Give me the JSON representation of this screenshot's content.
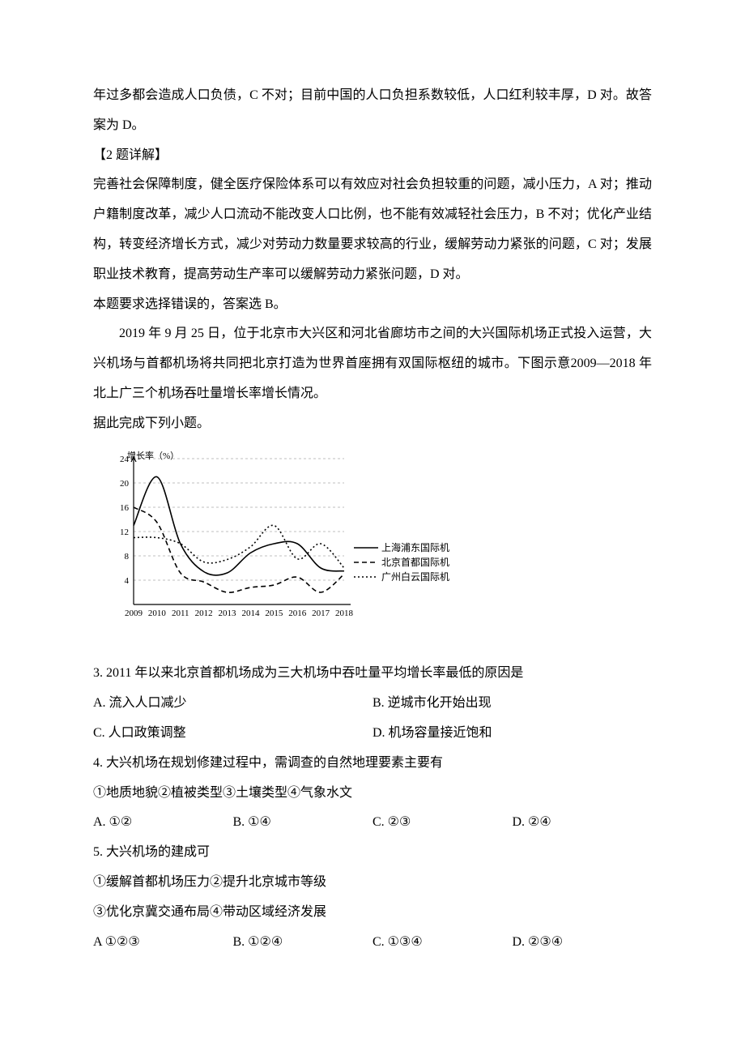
{
  "passage1": {
    "p1": "年过多都会造成人口负债，C 不对；目前中国的人口负担系数较低，人口红利较丰厚，D 对。故答案为 D。",
    "p2": "【2 题详解】",
    "p3": "完善社会保障制度，健全医疗保险体系可以有效应对社会负担较重的问题，减小压力，A 对；推动户籍制度改革，减少人口流动不能改变人口比例，也不能有效减轻社会压力，B 不对；优化产业结构，转变经济增长方式，减少对劳动力数量要求较高的行业，缓解劳动力紧张的问题，C 对；发展职业技术教育，提高劳动生产率可以缓解劳动力紧张问题，D 对。",
    "p4": "本题要求选择错误的，答案选 B。"
  },
  "passage2": {
    "p1": "2019 年 9 月 25 日，位于北京市大兴区和河北省廊坊市之间的大兴国际机场正式投入运营，大兴机场与首都机场将共同把北京打造为世界首座拥有双国际枢纽的城市。下图示意2009—2018 年北上广三个机场吞吐量增长率增长情况。",
    "p2": "据此完成下列小题。"
  },
  "chart": {
    "type": "line",
    "y_axis_title": "增长率（%）",
    "years": [
      "2009",
      "2010",
      "2011",
      "2012",
      "2013",
      "2014",
      "2015",
      "2016",
      "2017",
      "2018"
    ],
    "ylim": [
      0,
      24
    ],
    "ytick_step": 4,
    "grid_color": "#bfbfbf",
    "axis_color": "#000000",
    "background_color": "#ffffff",
    "font_size": 11,
    "series": [
      {
        "name": "上海浦东国际机场",
        "style": "solid",
        "color": "#000000",
        "width": 1.6,
        "values": [
          13.0,
          21.0,
          10.0,
          5.4,
          5.2,
          8.5,
          10.0,
          10.0,
          6.0,
          5.5
        ]
      },
      {
        "name": "北京首都国际机场",
        "style": "dash",
        "dash": "6,4",
        "color": "#000000",
        "width": 1.6,
        "values": [
          16.0,
          13.5,
          5.2,
          3.7,
          2.0,
          2.8,
          3.2,
          4.5,
          2.0,
          5.0
        ]
      },
      {
        "name": "广州白云国际机场",
        "style": "dot",
        "dash": "2,3",
        "color": "#000000",
        "width": 1.6,
        "values": [
          11.0,
          11.0,
          10.0,
          7.0,
          7.4,
          9.5,
          13.0,
          7.5,
          10.0,
          6.0
        ]
      }
    ],
    "legend_labels": [
      "上海浦东国际机场",
      "北京首都国际机场",
      "广州白云国际机场"
    ]
  },
  "q3": {
    "stem": "3. 2011 年以来北京首都机场成为三大机场中吞吐量平均增长率最低的原因是",
    "A": "A. 流入人口减少",
    "B": "B. 逆城市化开始出现",
    "C": "C. 人口政策调整",
    "D": "D. 机场容量接近饱和"
  },
  "q4": {
    "stem": "4. 大兴机场在规划修建过程中，需调查的自然地理要素主要有",
    "list": "①地质地貌②植被类型③土壤类型④气象水文",
    "A": "A. ①②",
    "B": "B. ①④",
    "C": "C. ②③",
    "D": "D. ②④"
  },
  "q5": {
    "stem": "5. 大兴机场的建成可",
    "list1": "①缓解首都机场压力②提升北京城市等级",
    "list2": "③优化京冀交通布局④带动区域经济发展",
    "A": "A  ①②③",
    "B": "B. ①②④",
    "C": "C. ①③④",
    "D": "D. ②③④"
  }
}
